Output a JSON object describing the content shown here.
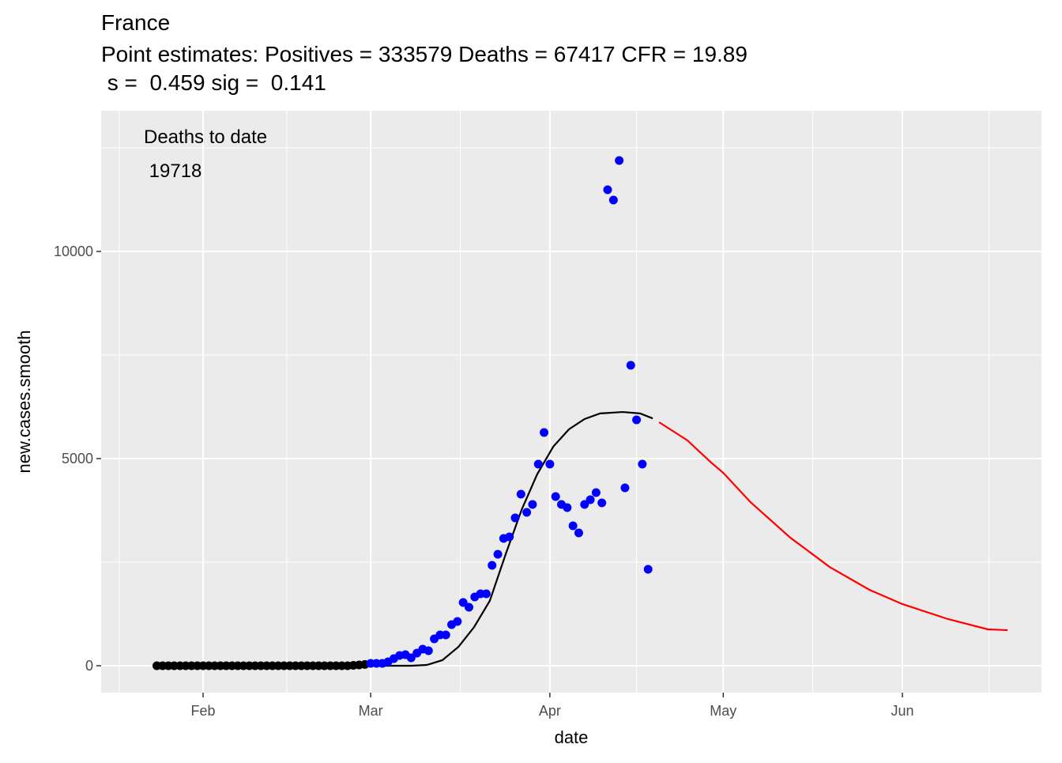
{
  "chart_data": {
    "type": "scatter",
    "title": "France",
    "subtitle": [
      "Point estimates: Positives = 333579 Deaths = 67417 CFR = 19.89",
      " s =  0.459 sig =  0.141"
    ],
    "x_label": "date",
    "y_label": "new.cases.smooth",
    "annotations": [
      "Deaths to date",
      " 19718"
    ],
    "xlim": [
      14.36,
      177.06
    ],
    "ylim": [
      -649,
      13397
    ],
    "xticks": [
      {
        "value": 32,
        "label": "Feb"
      },
      {
        "value": 61,
        "label": "Mar"
      },
      {
        "value": 92,
        "label": "Apr"
      },
      {
        "value": 122,
        "label": "May"
      },
      {
        "value": 153,
        "label": "Jun"
      }
    ],
    "xminorticks": [
      17.5,
      46.5,
      76.5,
      107,
      137.5,
      168
    ],
    "yticks": [
      0,
      5000,
      10000
    ],
    "yminorticks": [
      2500,
      7500,
      12500
    ],
    "grid": true,
    "series": [
      {
        "mark": "point",
        "color": "#000000",
        "x": [
          24,
          25,
          26,
          27,
          28,
          29,
          30,
          31,
          32,
          33,
          34,
          35,
          36,
          37,
          38,
          39,
          40,
          41,
          42,
          43,
          44,
          45,
          46,
          47,
          48,
          49,
          50,
          51,
          52,
          53,
          54,
          55,
          56,
          57,
          58,
          59,
          60
        ],
        "values": [
          0,
          0,
          0,
          0,
          0,
          0,
          0,
          0,
          0,
          0,
          0,
          0,
          0,
          0,
          0,
          0,
          0,
          0,
          0,
          0,
          0,
          0,
          0,
          0,
          0,
          0,
          0,
          0,
          0,
          0,
          0,
          0,
          0,
          0,
          10,
          20,
          30
        ]
      },
      {
        "mark": "point",
        "color": "#0000ff",
        "x": [
          61,
          62,
          63,
          64,
          65,
          66,
          67,
          68,
          69,
          70,
          71,
          72,
          73,
          74,
          75,
          76,
          77,
          78,
          79,
          80,
          81,
          82,
          83,
          84,
          85,
          86,
          87,
          88,
          89,
          90,
          91,
          92,
          93,
          94,
          95,
          96,
          97,
          98,
          99,
          100,
          101,
          102,
          103,
          104,
          105,
          106,
          107,
          108,
          109
        ],
        "values": [
          57,
          57,
          57,
          95,
          172,
          248,
          267,
          191,
          305,
          401,
          363,
          649,
          744,
          744,
          992,
          1069,
          1527,
          1412,
          1660,
          1737,
          1737,
          2424,
          2691,
          3073,
          3111,
          3569,
          4141,
          3702,
          3893,
          4866,
          5630,
          4866,
          4084,
          3893,
          3817,
          3378,
          3206,
          3893,
          4008,
          4179,
          3931,
          11489,
          11240,
          12195,
          4294,
          7252,
          5935,
          4866,
          2328
        ]
      },
      {
        "mark": "line",
        "color": "#000000",
        "x": [
          61,
          68,
          70.7,
          73.4,
          76.2,
          78.9,
          81.6,
          84.4,
          87.1,
          89.8,
          92.6,
          95.3,
          98,
          100.7,
          104.6,
          107.6,
          109.8
        ],
        "values": [
          0,
          0,
          19,
          134,
          458,
          935,
          1565,
          2710,
          3760,
          4620,
          5290,
          5706,
          5955,
          6090,
          6125,
          6090,
          5970
        ]
      },
      {
        "mark": "line",
        "color": "#ff0000",
        "x": [
          110.9,
          115.8,
          119.9,
          122,
          126.7,
          133.6,
          140.4,
          147.3,
          153,
          160.9,
          167.8,
          171.2
        ],
        "values": [
          5878,
          5439,
          4905,
          4656,
          3950,
          3092,
          2385,
          1832,
          1489,
          1126,
          878,
          859
        ]
      }
    ]
  }
}
